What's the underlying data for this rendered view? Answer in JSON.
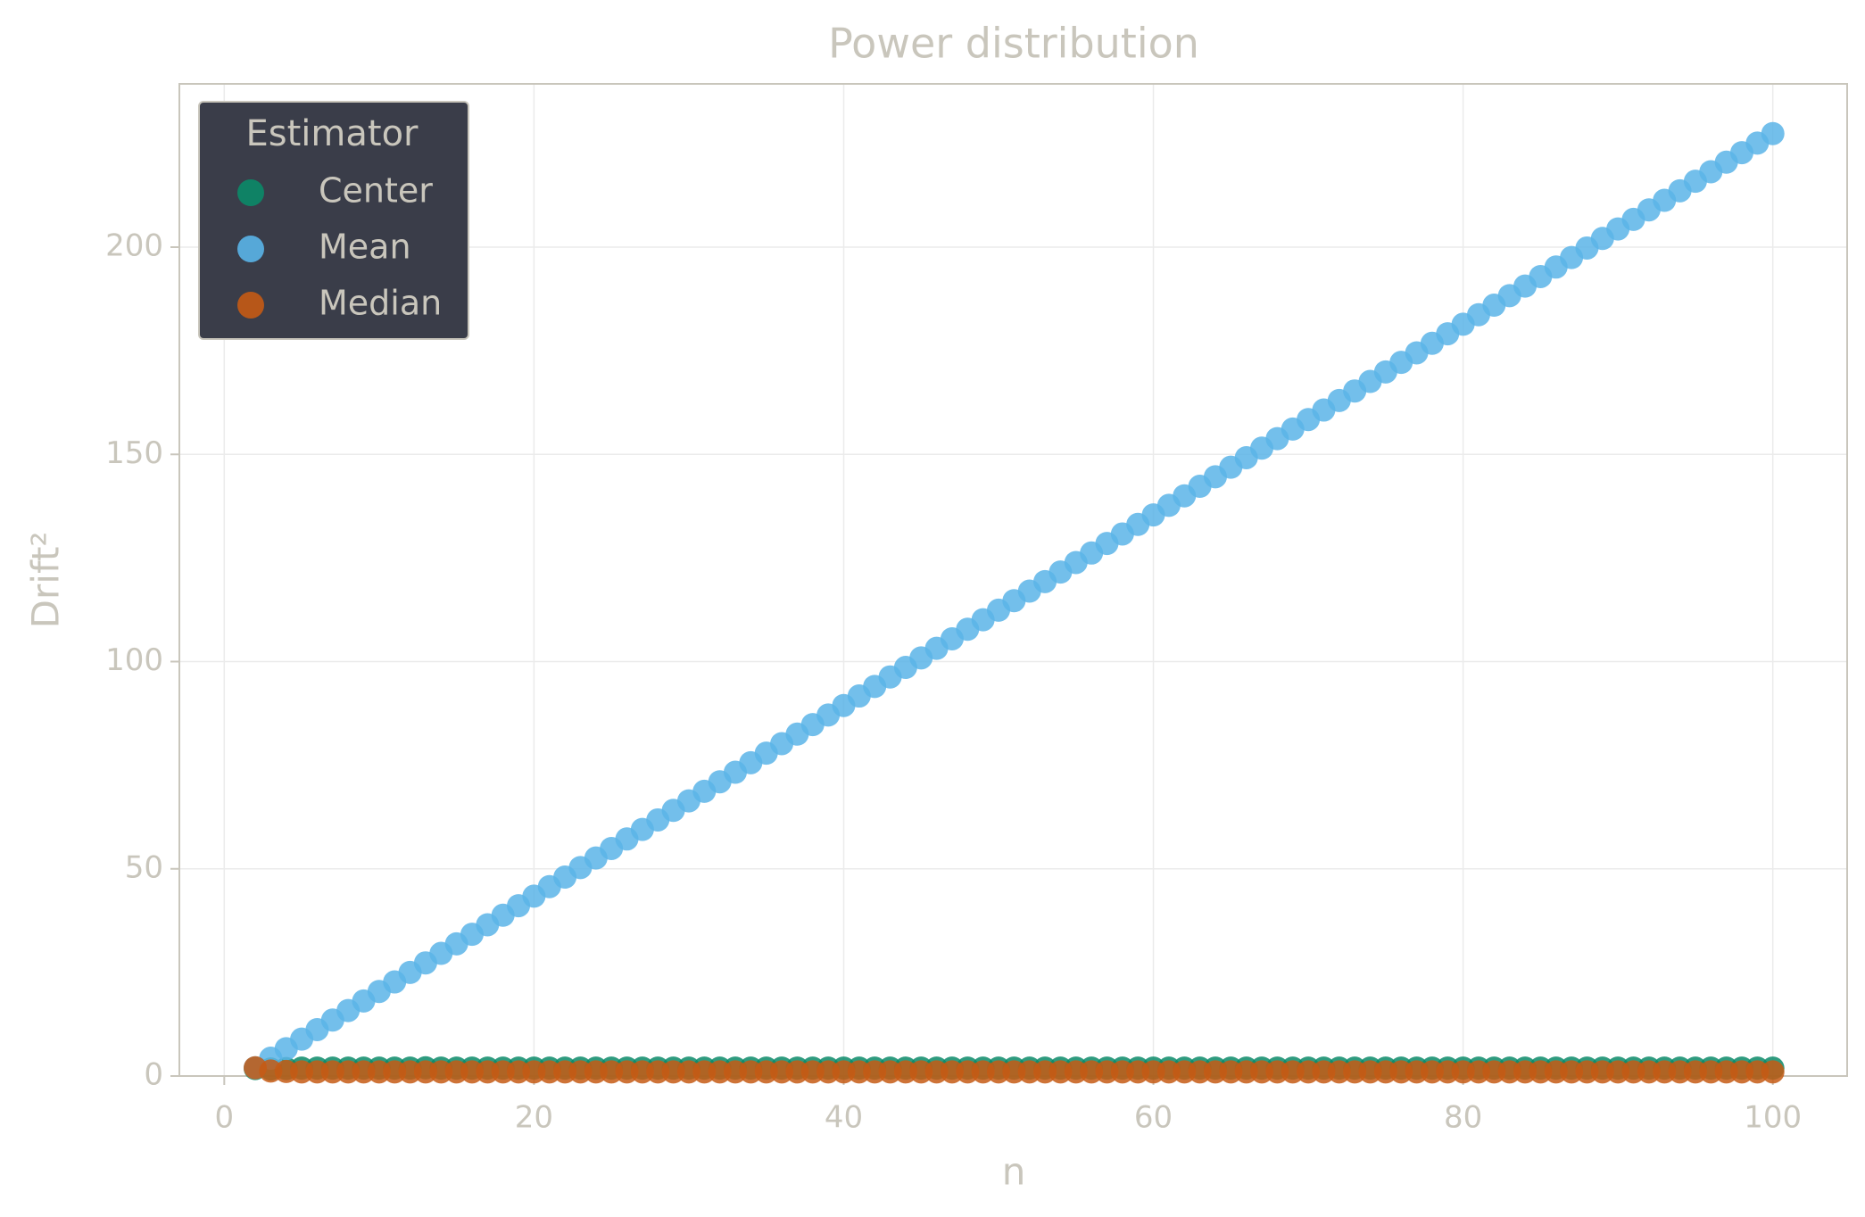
{
  "chart_data": {
    "type": "scatter",
    "title": "Power distribution",
    "xlabel": "n",
    "ylabel": "Drift²",
    "legend_title": "Estimator",
    "legend": "upper left",
    "grid": true,
    "xlim": [
      -2.9,
      104.8
    ],
    "xticks": [
      0,
      20,
      40,
      60,
      80,
      100
    ],
    "ylim": [
      0,
      239.4
    ],
    "yticks": [
      0,
      50,
      100,
      150,
      200
    ],
    "x": [
      2,
      3,
      4,
      5,
      6,
      7,
      8,
      9,
      10,
      11,
      12,
      13,
      14,
      15,
      16,
      17,
      18,
      19,
      20,
      21,
      22,
      23,
      24,
      25,
      26,
      27,
      28,
      29,
      30,
      31,
      32,
      33,
      34,
      35,
      36,
      37,
      38,
      39,
      40,
      41,
      42,
      43,
      44,
      45,
      46,
      47,
      48,
      49,
      50,
      51,
      52,
      53,
      54,
      55,
      56,
      57,
      58,
      59,
      60,
      61,
      62,
      63,
      64,
      65,
      66,
      67,
      68,
      69,
      70,
      71,
      72,
      73,
      74,
      75,
      76,
      77,
      78,
      79,
      80,
      81,
      82,
      83,
      84,
      85,
      86,
      87,
      88,
      89,
      90,
      91,
      92,
      93,
      94,
      95,
      96,
      97,
      98,
      99,
      100
    ],
    "series": [
      {
        "name": "Center",
        "color": "#0b8a68",
        "values": [
          1.8,
          1.7,
          1.8,
          1.9,
          1.9,
          1.9,
          1.9,
          1.9,
          1.9,
          1.9,
          1.9,
          2.0,
          1.9,
          1.9,
          1.9,
          1.9,
          1.9,
          1.9,
          1.9,
          1.9,
          1.9,
          1.9,
          1.9,
          1.9,
          1.9,
          1.9,
          1.9,
          1.9,
          1.9,
          1.9,
          1.9,
          1.9,
          1.9,
          1.9,
          1.9,
          1.9,
          1.9,
          1.9,
          1.9,
          1.9,
          1.9,
          1.9,
          1.9,
          1.9,
          1.9,
          1.9,
          1.9,
          1.9,
          1.9,
          1.9,
          1.9,
          1.9,
          1.9,
          1.9,
          1.9,
          1.9,
          1.9,
          1.9,
          1.9,
          1.9,
          1.9,
          1.9,
          1.9,
          1.9,
          1.9,
          1.9,
          1.9,
          1.9,
          1.9,
          1.9,
          1.9,
          1.9,
          1.9,
          1.9,
          1.9,
          1.9,
          1.9,
          1.9,
          1.9,
          1.9,
          1.9,
          1.9,
          1.9,
          1.9,
          1.9,
          1.9,
          1.9,
          1.9,
          1.9,
          1.9,
          1.9,
          1.9,
          1.9,
          1.9,
          1.9,
          1.9,
          1.9,
          1.9,
          1.9
        ]
      },
      {
        "name": "Mean",
        "color": "#5ab4e8",
        "values": [
          2.0,
          4.3,
          6.6,
          8.9,
          11.2,
          13.5,
          15.8,
          18.1,
          20.4,
          22.7,
          25.0,
          27.3,
          29.6,
          31.9,
          34.2,
          36.5,
          38.8,
          41.1,
          43.4,
          45.7,
          48.0,
          50.3,
          52.6,
          54.9,
          57.2,
          59.5,
          61.8,
          64.1,
          66.4,
          68.7,
          71.0,
          73.3,
          75.6,
          77.9,
          80.2,
          82.5,
          84.8,
          87.1,
          89.4,
          91.7,
          94.0,
          96.3,
          98.6,
          100.9,
          103.2,
          105.5,
          107.8,
          110.1,
          112.4,
          114.7,
          117.0,
          119.3,
          121.6,
          123.9,
          126.2,
          128.5,
          130.8,
          133.1,
          135.4,
          137.7,
          140.0,
          142.3,
          144.6,
          146.9,
          149.2,
          151.5,
          153.8,
          156.1,
          158.4,
          160.7,
          163.0,
          165.3,
          167.6,
          169.9,
          172.2,
          174.5,
          176.8,
          179.1,
          181.4,
          183.7,
          186.0,
          188.3,
          190.6,
          192.9,
          195.2,
          197.5,
          199.8,
          202.1,
          204.4,
          206.7,
          209.0,
          211.3,
          213.6,
          215.9,
          218.2,
          220.5,
          222.8,
          225.1,
          227.4
        ]
      },
      {
        "name": "Median",
        "color": "#c55a14",
        "values": [
          2.0,
          1.2,
          1.1,
          1.0,
          1.0,
          1.0,
          1.0,
          1.0,
          1.0,
          1.0,
          1.0,
          1.0,
          1.0,
          1.0,
          1.0,
          1.0,
          1.0,
          1.0,
          1.0,
          1.0,
          1.0,
          1.0,
          1.0,
          1.0,
          1.0,
          1.0,
          1.0,
          1.0,
          1.0,
          1.0,
          1.0,
          1.0,
          1.0,
          1.0,
          1.0,
          1.0,
          1.0,
          1.0,
          1.0,
          1.0,
          1.0,
          1.0,
          1.0,
          1.0,
          1.0,
          1.0,
          1.0,
          1.0,
          1.0,
          1.0,
          1.0,
          1.0,
          1.0,
          1.0,
          1.0,
          1.0,
          1.0,
          1.0,
          1.0,
          1.0,
          1.0,
          1.0,
          1.0,
          1.0,
          1.0,
          1.0,
          1.0,
          1.0,
          1.0,
          1.0,
          1.0,
          1.0,
          1.0,
          1.0,
          1.0,
          1.0,
          1.0,
          1.0,
          1.0,
          1.0,
          1.0,
          1.0,
          1.0,
          1.0,
          1.0,
          1.0,
          1.0,
          1.0,
          1.0,
          1.0,
          1.0,
          1.0,
          1.0,
          1.0,
          1.0,
          1.0,
          1.0,
          1.0,
          1.0
        ]
      }
    ]
  }
}
